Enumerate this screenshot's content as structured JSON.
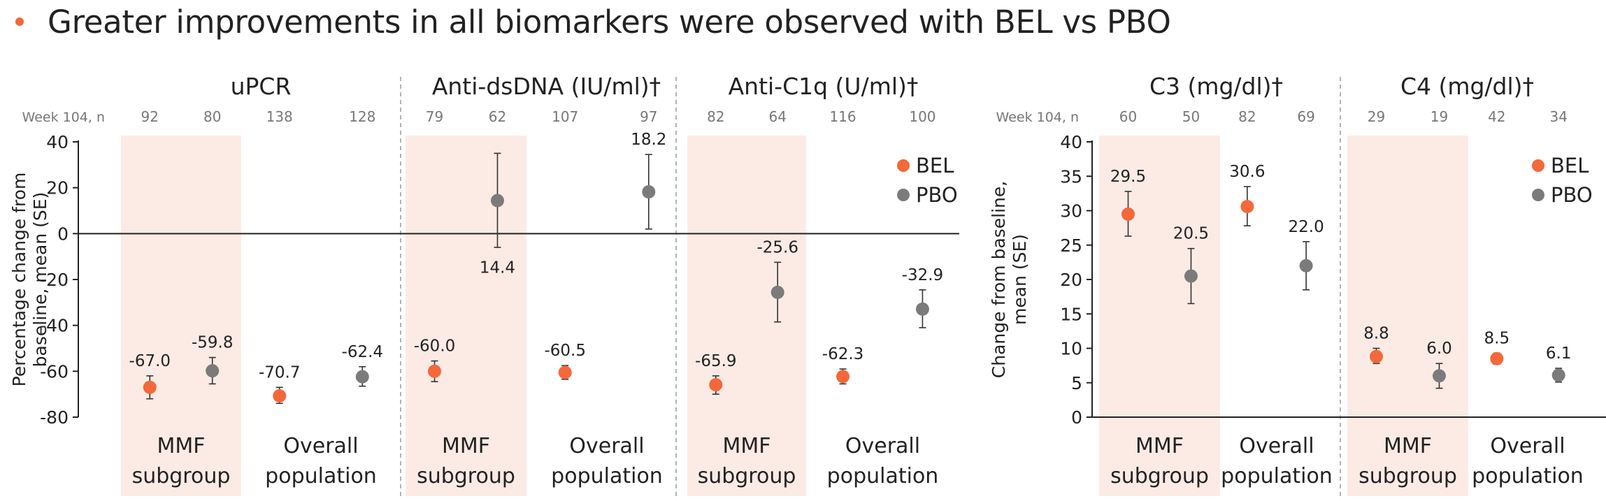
{
  "headline": {
    "text": "Greater improvements in all biomarkers were observed with BEL vs PBO",
    "bullet_color": "#f4683a"
  },
  "colors": {
    "bel": "#f4683a",
    "pbo": "#7b7b7b",
    "shade": "#fcebe5",
    "axis": "#222222",
    "divider": "#9a9a9a",
    "muted": "#777777"
  },
  "chart_data": [
    {
      "panel": "left",
      "type": "scatter",
      "ylabel": [
        "Percentage change from",
        "baseline, mean (SE)"
      ],
      "ylim": [
        -80,
        40
      ],
      "yticks": [
        40,
        20,
        0,
        -20,
        -40,
        -60,
        -80
      ],
      "week_label": "Week 104, n",
      "legend": [
        "BEL",
        "PBO"
      ],
      "legend_position": "top-right",
      "groups": [
        {
          "title": "uPCR",
          "subgroups": [
            {
              "label": [
                "MMF",
                "subgroup"
              ],
              "shaded": true,
              "bel": {
                "n": 92,
                "mean": -67.0,
                "lo": -72.0,
                "hi": -62.0,
                "label": "-67.0"
              },
              "pbo": {
                "n": 80,
                "mean": -59.8,
                "lo": -65.5,
                "hi": -54.0,
                "label": "-59.8"
              }
            },
            {
              "label": [
                "Overall",
                "population"
              ],
              "shaded": false,
              "bel": {
                "n": 138,
                "mean": -70.7,
                "lo": -74.0,
                "hi": -67.0,
                "label": "-70.7"
              },
              "pbo": {
                "n": 128,
                "mean": -62.4,
                "lo": -66.5,
                "hi": -58.0,
                "label": "-62.4"
              }
            }
          ]
        },
        {
          "title": "Anti-dsDNA (IU/ml)†",
          "subgroups": [
            {
              "label": [
                "MMF",
                "subgroup"
              ],
              "shaded": true,
              "bel": {
                "n": 79,
                "mean": -60.0,
                "lo": -64.5,
                "hi": -55.5,
                "label": "-60.0"
              },
              "pbo": {
                "n": 62,
                "mean": 14.4,
                "lo": -6.0,
                "hi": 35.0,
                "label": "14.4"
              }
            },
            {
              "label": [
                "Overall",
                "population"
              ],
              "shaded": false,
              "bel": {
                "n": 107,
                "mean": -60.5,
                "lo": -63.5,
                "hi": -57.5,
                "label": "-60.5"
              },
              "pbo": {
                "n": 97,
                "mean": 18.2,
                "lo": 2.0,
                "hi": 34.5,
                "label": "18.2"
              }
            }
          ]
        },
        {
          "title": "Anti-C1q (U/ml)†",
          "subgroups": [
            {
              "label": [
                "MMF",
                "subgroup"
              ],
              "shaded": true,
              "bel": {
                "n": 82,
                "mean": -65.9,
                "lo": -70.0,
                "hi": -62.0,
                "label": "-65.9"
              },
              "pbo": {
                "n": 64,
                "mean": -25.6,
                "lo": -38.5,
                "hi": -12.5,
                "label": "-25.6"
              }
            },
            {
              "label": [
                "Overall",
                "population"
              ],
              "shaded": false,
              "bel": {
                "n": 116,
                "mean": -62.3,
                "lo": -65.5,
                "hi": -59.0,
                "label": "-62.3"
              },
              "pbo": {
                "n": 100,
                "mean": -32.9,
                "lo": -41.0,
                "hi": -24.5,
                "label": "-32.9"
              }
            }
          ]
        }
      ]
    },
    {
      "panel": "right",
      "type": "scatter",
      "ylabel": [
        "Change from baseline,",
        "mean (SE)"
      ],
      "ylim": [
        0,
        40
      ],
      "yticks": [
        40,
        35,
        30,
        25,
        20,
        15,
        10,
        5,
        0
      ],
      "week_label": "Week 104, n",
      "legend": [
        "BEL",
        "PBO"
      ],
      "legend_position": "top-right",
      "groups": [
        {
          "title": "C3 (mg/dl)†",
          "subgroups": [
            {
              "label": [
                "MMF",
                "subgroup"
              ],
              "shaded": true,
              "bel": {
                "n": 60,
                "mean": 29.5,
                "lo": 26.3,
                "hi": 32.8,
                "label": "29.5"
              },
              "pbo": {
                "n": 50,
                "mean": 20.5,
                "lo": 16.5,
                "hi": 24.5,
                "label": "20.5"
              }
            },
            {
              "label": [
                "Overall",
                "population"
              ],
              "shaded": false,
              "bel": {
                "n": 82,
                "mean": 30.6,
                "lo": 27.8,
                "hi": 33.5,
                "label": "30.6"
              },
              "pbo": {
                "n": 69,
                "mean": 22.0,
                "lo": 18.5,
                "hi": 25.5,
                "label": "22.0"
              }
            }
          ]
        },
        {
          "title": "C4 (mg/dl)†",
          "subgroups": [
            {
              "label": [
                "MMF",
                "subgroup"
              ],
              "shaded": true,
              "bel": {
                "n": 29,
                "mean": 8.8,
                "lo": 7.8,
                "hi": 10.0,
                "label": "8.8"
              },
              "pbo": {
                "n": 19,
                "mean": 6.0,
                "lo": 4.2,
                "hi": 7.8,
                "label": "6.0"
              }
            },
            {
              "label": [
                "Overall",
                "population"
              ],
              "shaded": false,
              "bel": {
                "n": 42,
                "mean": 8.5,
                "lo": 7.7,
                "hi": 9.3,
                "label": "8.5"
              },
              "pbo": {
                "n": 34,
                "mean": 6.1,
                "lo": 5.1,
                "hi": 7.1,
                "label": "6.1"
              }
            }
          ]
        }
      ]
    }
  ]
}
